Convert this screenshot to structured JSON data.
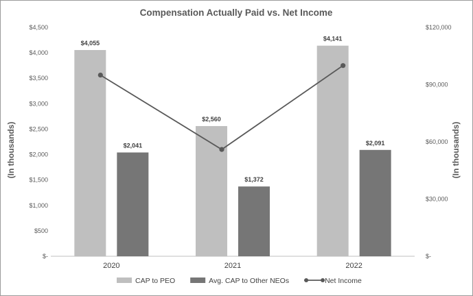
{
  "chart_data": {
    "type": "bar",
    "title": "Compensation Actually Paid vs. Net Income",
    "categories": [
      "2020",
      "2021",
      "2022"
    ],
    "ylabel": "(In thousands)",
    "ylabel_right": "(In thousands)",
    "ylim": [
      0,
      4500
    ],
    "ylim_right": [
      0,
      120000
    ],
    "y_ticks": [
      0,
      500,
      1000,
      1500,
      2000,
      2500,
      3000,
      3500,
      4000,
      4500
    ],
    "y_tick_labels": [
      "$-",
      "$500",
      "$1,000",
      "$1,500",
      "$2,000",
      "$2,500",
      "$3,000",
      "$3,500",
      "$4,000",
      "$4,500"
    ],
    "y_right_ticks": [
      0,
      30000,
      60000,
      90000,
      120000
    ],
    "y_right_tick_labels": [
      "$-",
      "$30,000",
      "$60,000",
      "$90,000",
      "$120,000"
    ],
    "grid": false,
    "legend_position": "bottom",
    "series": [
      {
        "name": "CAP to PEO",
        "kind": "bar",
        "axis": "left",
        "color": "#bfbfbf",
        "values": [
          4055,
          2560,
          4141
        ],
        "labels": [
          "$4,055",
          "$2,560",
          "$4,141"
        ]
      },
      {
        "name": "Avg. CAP to Other NEOs",
        "kind": "bar",
        "axis": "left",
        "color": "#767676",
        "values": [
          2041,
          1372,
          2091
        ],
        "labels": [
          "$2,041",
          "$1,372",
          "$2,091"
        ]
      },
      {
        "name": "Net Income",
        "kind": "line",
        "axis": "right",
        "color": "#595959",
        "values": [
          95000,
          56000,
          100000
        ]
      }
    ]
  }
}
